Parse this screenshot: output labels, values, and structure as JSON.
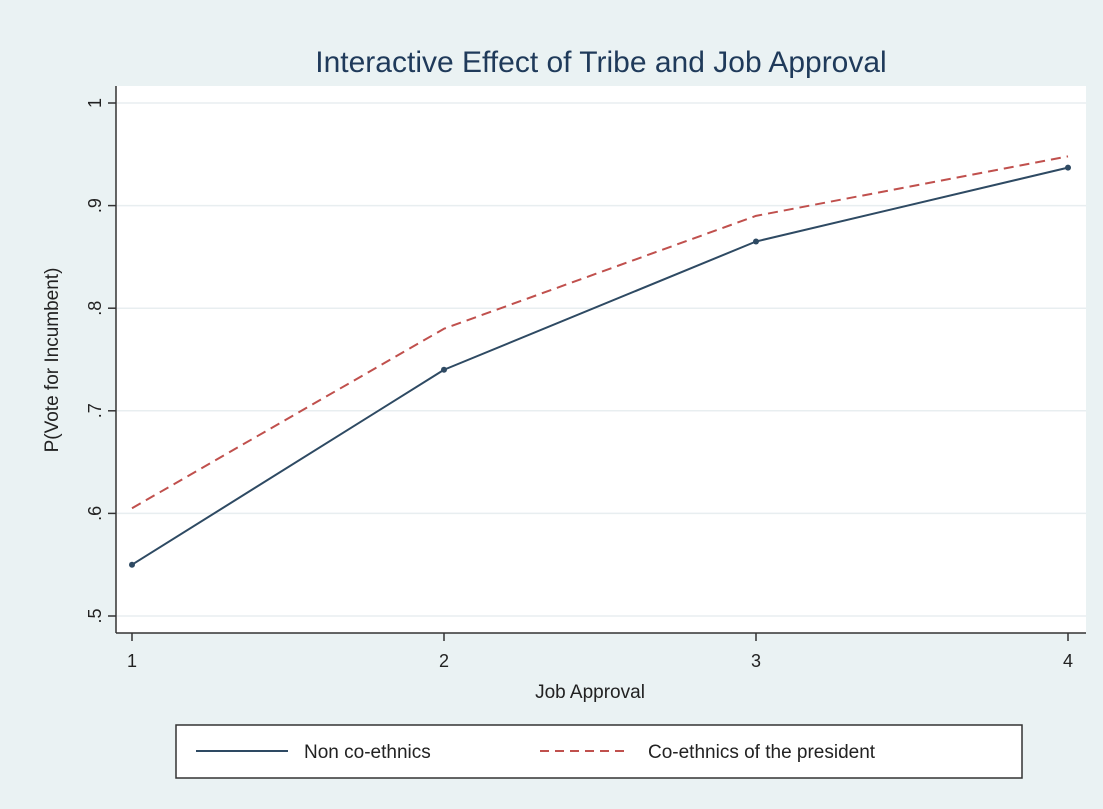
{
  "chart_data": {
    "type": "line",
    "title": "Interactive Effect of Tribe and Job Approval",
    "xlabel": "Job Approval",
    "ylabel": "P(Vote for Incumbent)",
    "x": [
      1,
      2,
      3,
      4
    ],
    "xticks": [
      1,
      2,
      3,
      4
    ],
    "xlim": [
      1,
      4
    ],
    "yticks": [
      0.5,
      0.6,
      0.7,
      0.8,
      0.9,
      1
    ],
    "ytick_labels": [
      ".5",
      ".6",
      ".7",
      ".8",
      ".9",
      "1"
    ],
    "ylim": [
      0.5,
      1
    ],
    "grid": true,
    "legend_position": "bottom",
    "series": [
      {
        "name": "Non co-ethnics",
        "values": [
          0.55,
          0.74,
          0.865,
          0.937
        ],
        "color": "#2e4a63",
        "style": "solid",
        "markers": true
      },
      {
        "name": "Co-ethnics of the president",
        "values": [
          0.605,
          0.78,
          0.89,
          0.948
        ],
        "color": "#c0504d",
        "style": "dashed",
        "markers": false
      }
    ]
  },
  "colors": {
    "background": "#eaf2f3",
    "plot_area": "#ffffff",
    "gridline": "#e8eef0",
    "title": "#1f3a5a"
  }
}
